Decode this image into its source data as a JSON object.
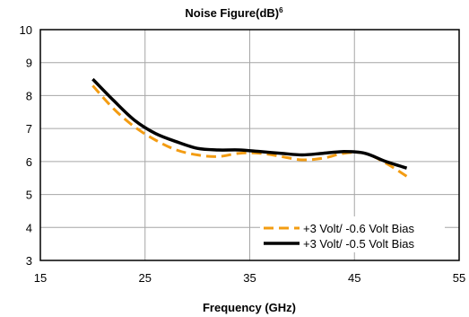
{
  "chart_data": {
    "type": "line",
    "title": "Noise Figure(dB)",
    "title_superscript": "6",
    "xlabel": "Frequency (GHz)",
    "ylabel": "",
    "xlim": [
      15,
      55
    ],
    "ylim": [
      3,
      10
    ],
    "xticks": [
      15,
      25,
      35,
      45,
      55
    ],
    "yticks": [
      3,
      4,
      5,
      6,
      7,
      8,
      9,
      10
    ],
    "grid": true,
    "legend_position": "bottom-right",
    "series": [
      {
        "name": "+3 Volt/ -0.6 Volt Bias",
        "color": "#F39C12",
        "style": "dashed",
        "x": [
          20,
          22,
          24,
          26,
          28,
          30,
          32,
          34,
          36,
          38,
          40,
          42,
          44,
          46,
          48,
          50
        ],
        "y": [
          8.3,
          7.6,
          7.05,
          6.65,
          6.35,
          6.2,
          6.15,
          6.25,
          6.25,
          6.15,
          6.05,
          6.1,
          6.25,
          6.25,
          5.95,
          5.55
        ]
      },
      {
        "name": "+3 Volt/ -0.5 Volt Bias",
        "color": "#000000",
        "style": "solid",
        "x": [
          20,
          22,
          24,
          26,
          28,
          30,
          32,
          34,
          36,
          38,
          40,
          42,
          44,
          46,
          48,
          50
        ],
        "y": [
          8.5,
          7.85,
          7.25,
          6.85,
          6.6,
          6.4,
          6.35,
          6.35,
          6.3,
          6.25,
          6.2,
          6.25,
          6.3,
          6.25,
          6.0,
          5.8
        ]
      }
    ]
  }
}
